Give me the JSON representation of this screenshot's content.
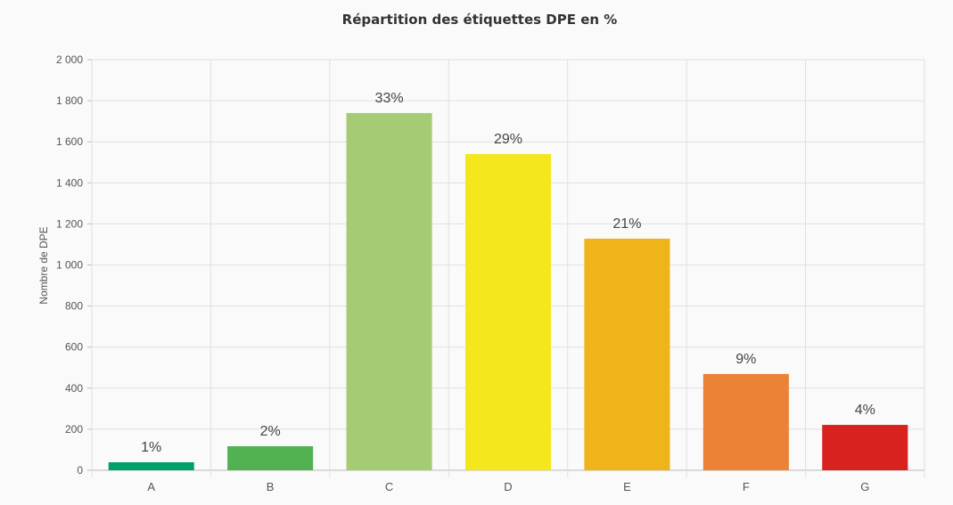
{
  "chart_data": {
    "type": "bar",
    "title": "Répartition des étiquettes DPE en %",
    "xlabel": "",
    "ylabel": "Nombre de DPE",
    "ylim": [
      0,
      2000
    ],
    "yticks": [
      0,
      200,
      400,
      600,
      800,
      1000,
      1200,
      1400,
      1600,
      1800,
      2000
    ],
    "ytick_labels": [
      "0",
      "200",
      "400",
      "600",
      "800",
      "1 000",
      "1 200",
      "1 400",
      "1 600",
      "1 800",
      "2 000"
    ],
    "categories": [
      "A",
      "B",
      "C",
      "D",
      "E",
      "F",
      "G"
    ],
    "values": [
      39,
      117,
      1740,
      1540,
      1128,
      469,
      221
    ],
    "data_labels": [
      "1%",
      "2%",
      "33%",
      "29%",
      "21%",
      "9%",
      "4%"
    ],
    "colors": [
      "#00a06d",
      "#52b153",
      "#a5cc74",
      "#f4e71d",
      "#f0b41b",
      "#eb8235",
      "#d7221f"
    ],
    "grid": true,
    "legend": "none"
  }
}
